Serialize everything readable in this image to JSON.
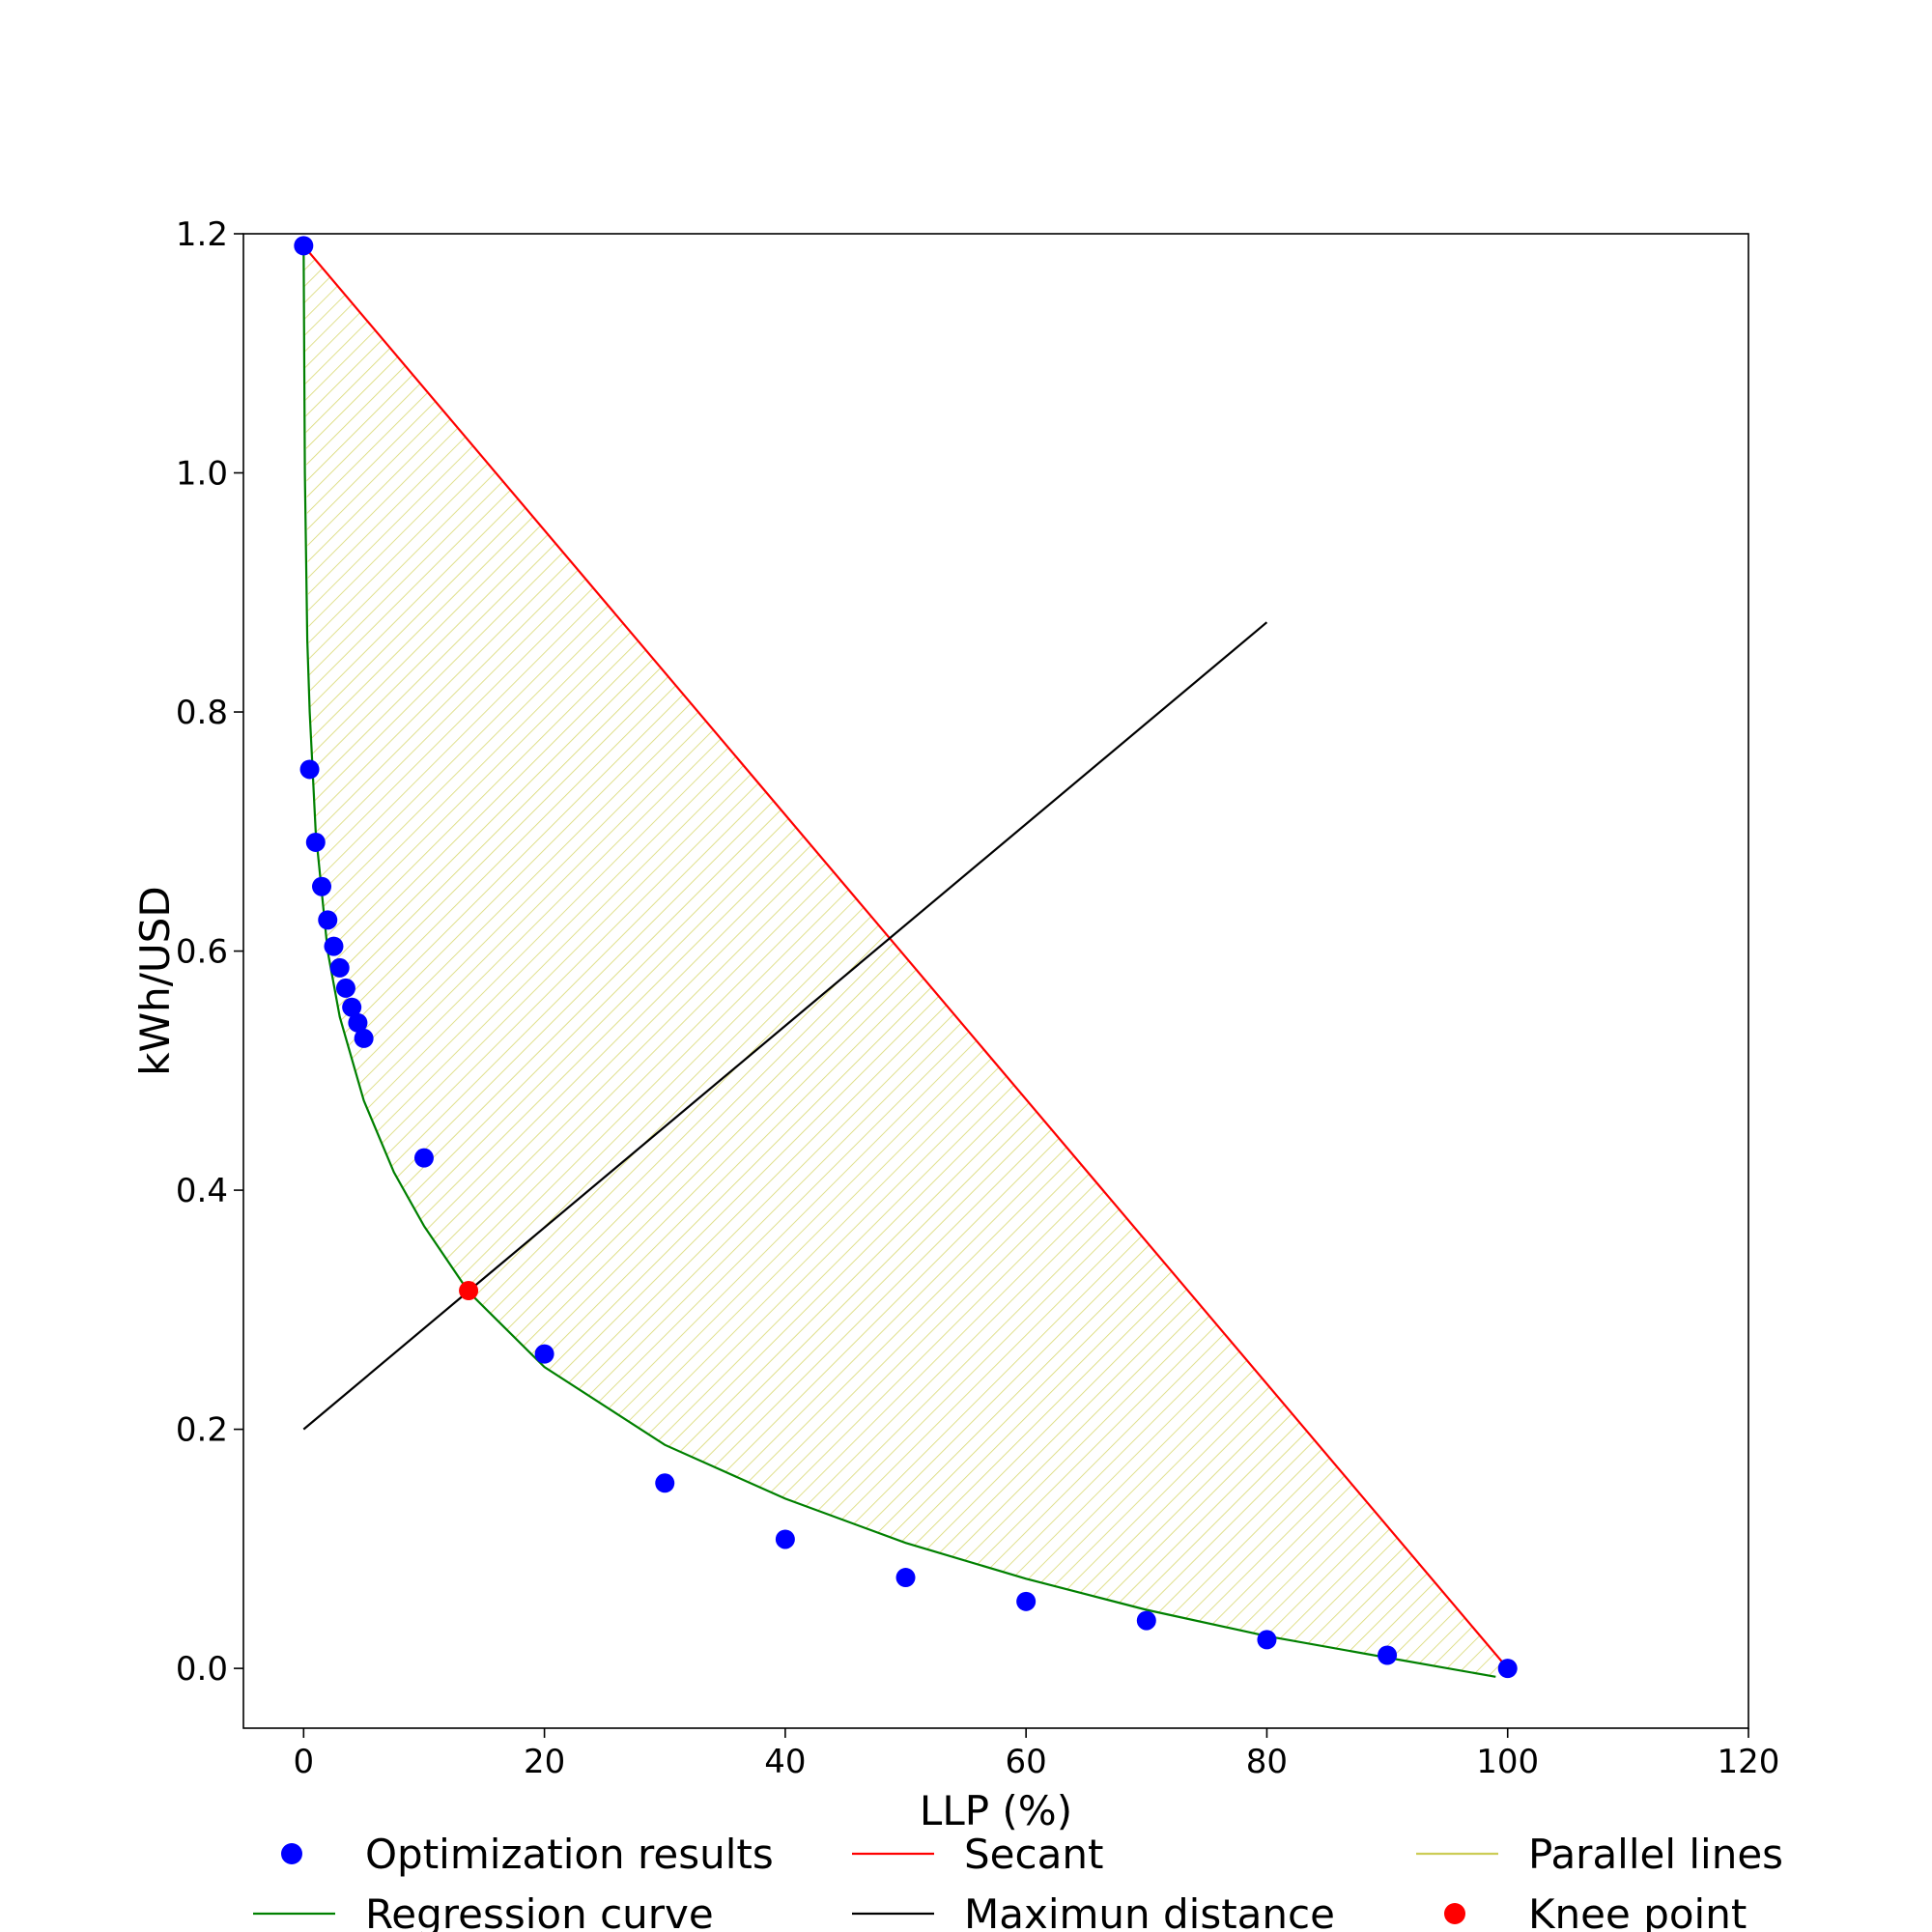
{
  "chart_data": {
    "type": "scatter",
    "title": "",
    "xlabel": "LLP (%)",
    "ylabel": "kWh/USD",
    "xlim": [
      -5,
      120
    ],
    "ylim": [
      -0.05,
      1.2
    ],
    "xticks": [
      "0",
      "20",
      "40",
      "60",
      "80",
      "100",
      "120"
    ],
    "yticks": [
      "0.0",
      "0.2",
      "0.4",
      "0.6",
      "0.8",
      "1.0",
      "1.2"
    ],
    "grid": false,
    "legend_position": "bottom",
    "series": [
      {
        "name": "Optimization results",
        "kind": "scatter",
        "color": "#0000ff",
        "x": [
          0,
          0.5,
          1,
          1.5,
          2,
          2.5,
          3,
          3.5,
          4,
          4.5,
          5,
          10,
          20,
          30,
          40,
          50,
          60,
          70,
          80,
          90,
          100
        ],
        "y": [
          1.19,
          0.752,
          0.691,
          0.654,
          0.626,
          0.604,
          0.586,
          0.569,
          0.553,
          0.54,
          0.527,
          0.427,
          0.263,
          0.155,
          0.108,
          0.076,
          0.056,
          0.04,
          0.024,
          0.011,
          0.0
        ]
      },
      {
        "name": "Secant",
        "kind": "line",
        "color": "#ff0000",
        "x": [
          0,
          100
        ],
        "y": [
          1.19,
          0.0
        ]
      },
      {
        "name": "Parallel lines",
        "kind": "hatch",
        "color": "#cccc55",
        "x": [
          0,
          0.5,
          1,
          2,
          3,
          5,
          7.5,
          10,
          13.7,
          20,
          30,
          40,
          50,
          60,
          70,
          80,
          90,
          99
        ],
        "y": [
          1.19,
          0.8,
          0.7,
          0.6,
          0.545,
          0.475,
          0.415,
          0.37,
          0.315,
          0.252,
          0.187,
          0.142,
          0.105,
          0.075,
          0.049,
          0.027,
          0.009,
          -0.007
        ]
      },
      {
        "name": "Regression curve",
        "kind": "line",
        "color": "#008000",
        "x": [
          0,
          0.1,
          0.3,
          0.5,
          1,
          2,
          3,
          5,
          7.5,
          10,
          13.7,
          20,
          30,
          40,
          50,
          60,
          70,
          80,
          90,
          99
        ],
        "y": [
          1.19,
          1.0,
          0.86,
          0.8,
          0.7,
          0.6,
          0.545,
          0.475,
          0.415,
          0.37,
          0.315,
          0.252,
          0.187,
          0.142,
          0.105,
          0.075,
          0.049,
          0.027,
          0.009,
          -0.007
        ]
      },
      {
        "name": "Maximun distance",
        "kind": "line",
        "color": "#000000",
        "x": [
          0,
          80
        ],
        "y": [
          0.2,
          0.875
        ]
      },
      {
        "name": "Knee point",
        "kind": "scatter",
        "color": "#ff0000",
        "x": [
          13.7
        ],
        "y": [
          0.316
        ]
      }
    ]
  }
}
